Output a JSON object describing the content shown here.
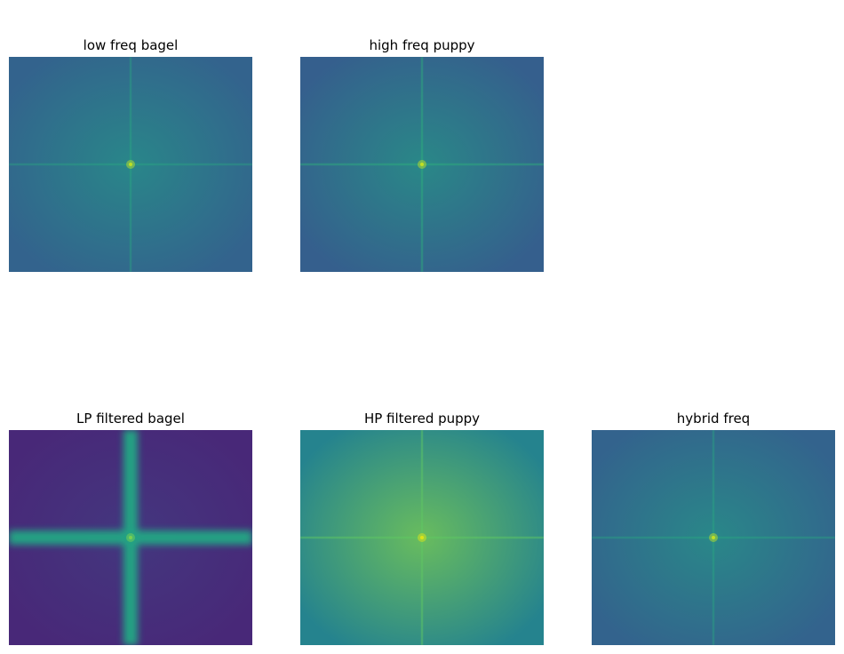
{
  "chart_data": [
    {
      "type": "heatmap",
      "title": "low freq bagel",
      "background": "#33638d",
      "center_color": "#21a386",
      "cross_color": "#29af7f",
      "cross_strength": 0.45,
      "cross_blur": 0,
      "glow": 0.55,
      "peak_color": "#bddf26"
    },
    {
      "type": "heatmap",
      "title": "high freq puppy",
      "background": "#355f8d",
      "center_color": "#22a384",
      "cross_color": "#2fb47c",
      "cross_strength": 0.55,
      "cross_blur": 0,
      "glow": 0.6,
      "peak_color": "#c2df23"
    },
    {
      "type": "heatmap",
      "title": "LP filtered bagel",
      "background": "#482878",
      "center_color": "#3b528b",
      "cross_color": "#22a884",
      "cross_strength": 0.95,
      "cross_blur": 1,
      "glow": 0.35,
      "peak_color": "#7ad151"
    },
    {
      "type": "heatmap",
      "title": "HP filtered puppy",
      "background": "#25838e",
      "center_color": "#86d549",
      "cross_color": "#5ec962",
      "cross_strength": 0.6,
      "cross_blur": 0,
      "glow": 0.7,
      "peak_color": "#dde318"
    },
    {
      "type": "heatmap",
      "title": "hybrid freq",
      "background": "#33638d",
      "center_color": "#22a585",
      "cross_color": "#2ab07f",
      "cross_strength": 0.45,
      "cross_blur": 0,
      "glow": 0.55,
      "peak_color": "#c0df25"
    }
  ]
}
